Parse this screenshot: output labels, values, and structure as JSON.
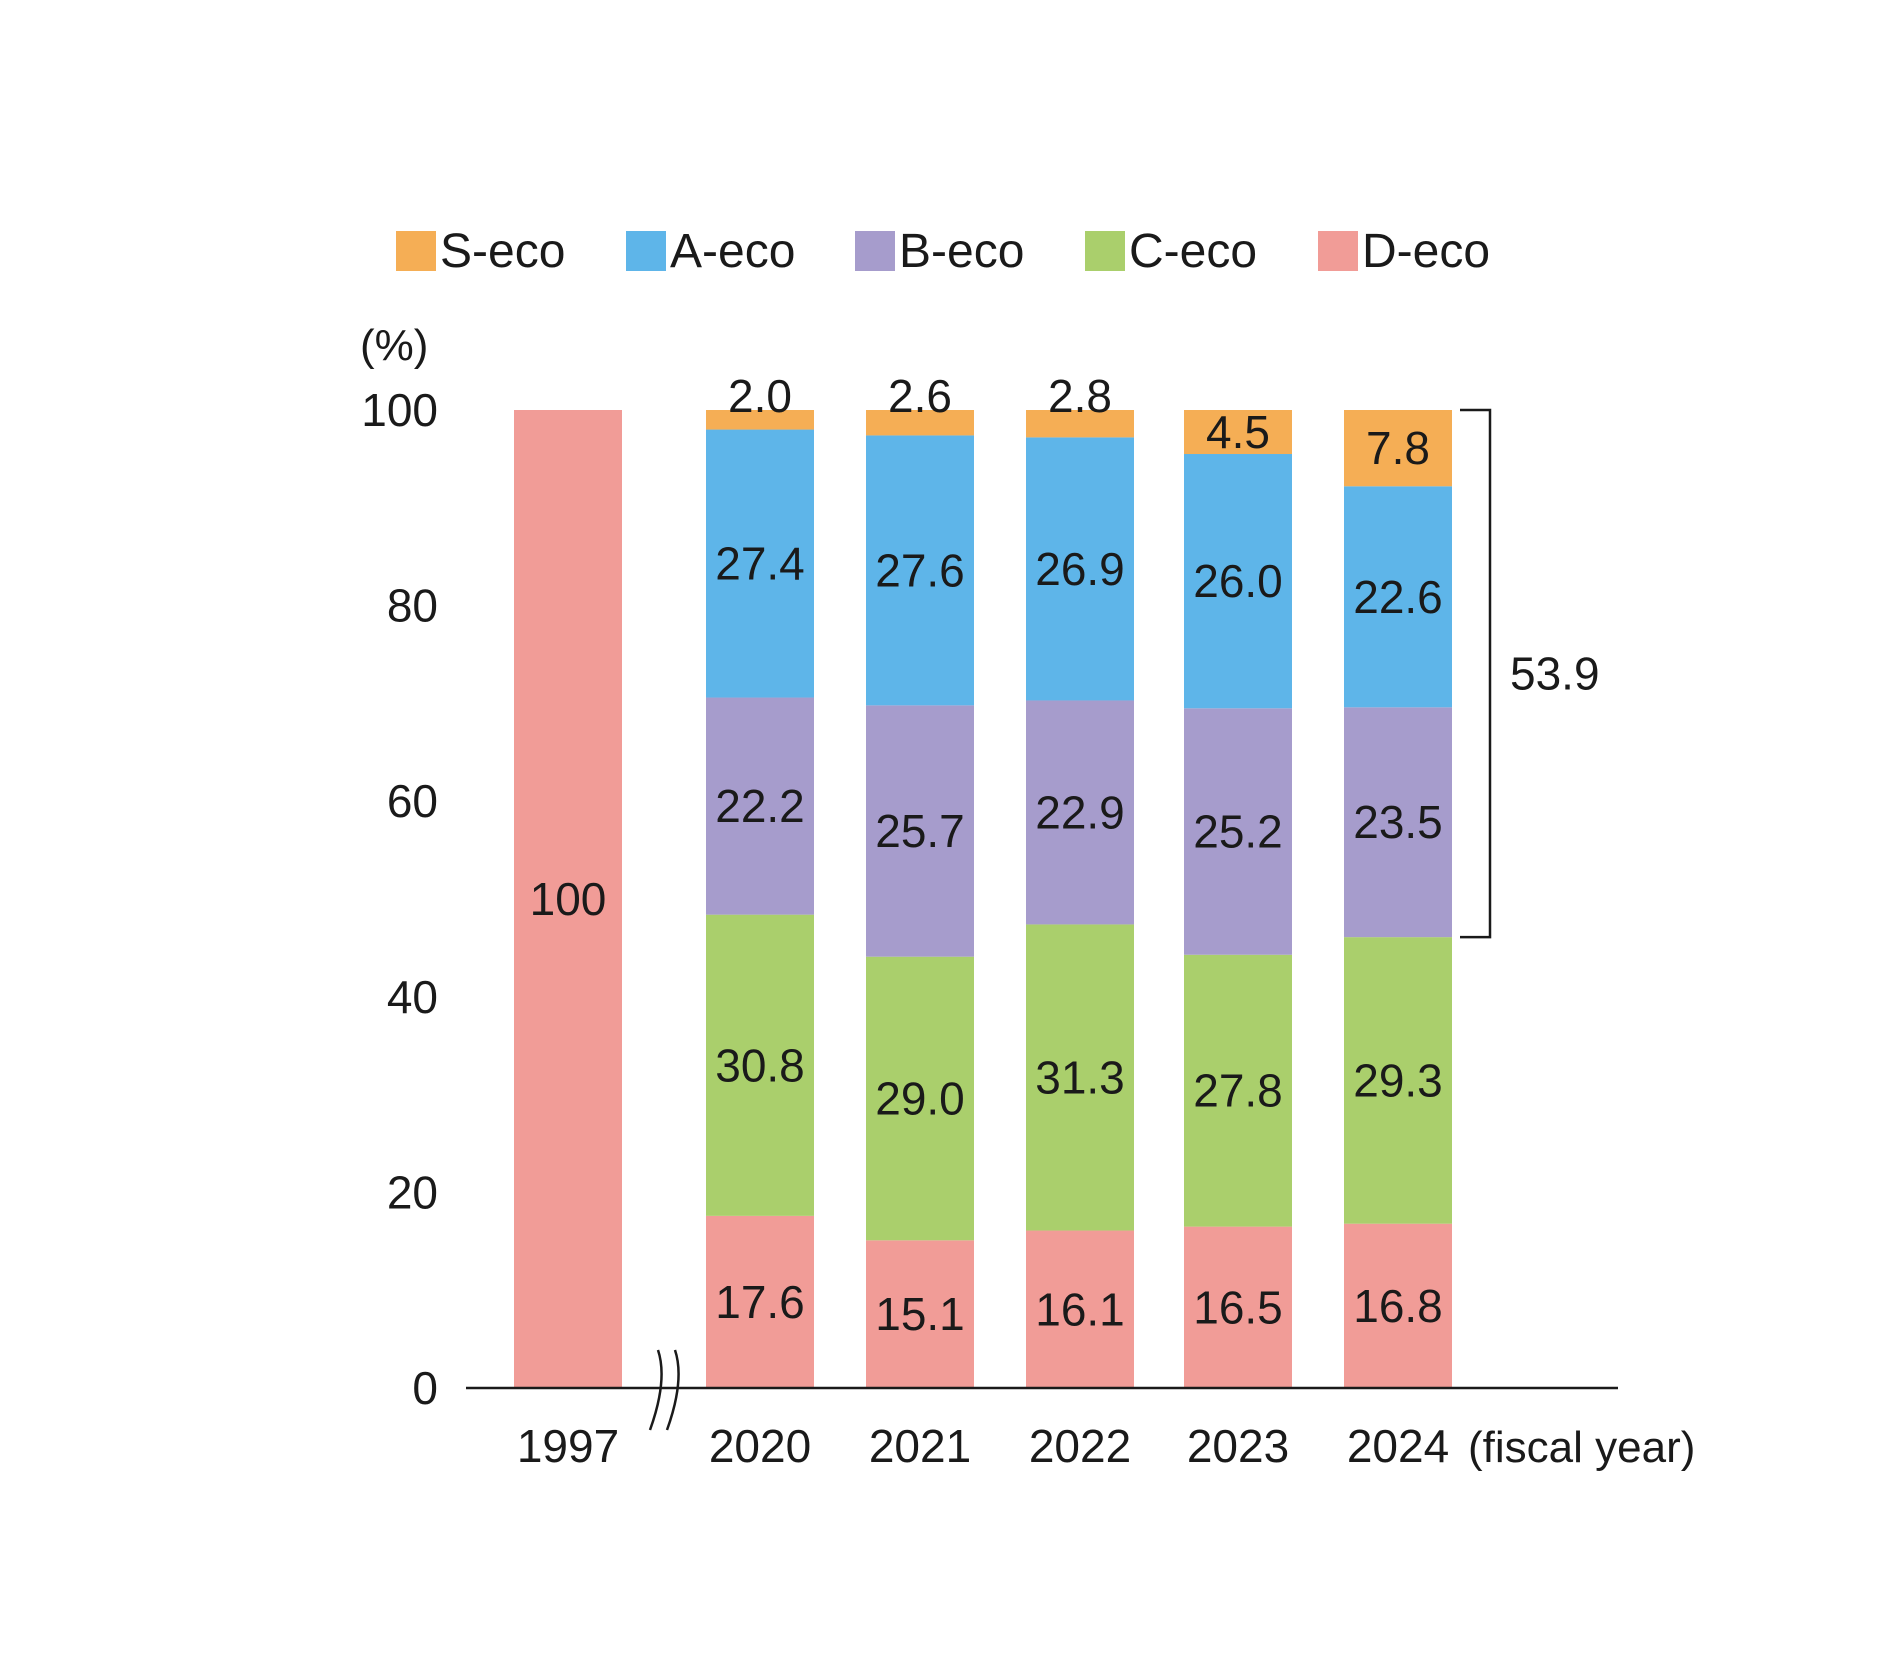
{
  "chart_data": {
    "type": "bar",
    "stacked": true,
    "categories": [
      "1997",
      "2020",
      "2021",
      "2022",
      "2023",
      "2024"
    ],
    "series": [
      {
        "name": "D-eco",
        "color": "#F19C97",
        "values": [
          100,
          17.6,
          15.1,
          16.1,
          16.5,
          16.8
        ],
        "labels": [
          "100",
          "17.6",
          "15.1",
          "16.1",
          "16.5",
          "16.8"
        ]
      },
      {
        "name": "C-eco",
        "color": "#AACF6C",
        "values": [
          null,
          30.8,
          29.0,
          31.3,
          27.8,
          29.3
        ],
        "labels": [
          "",
          "30.8",
          "29.0",
          "31.3",
          "27.8",
          "29.3"
        ]
      },
      {
        "name": "B-eco",
        "color": "#A69CCC",
        "values": [
          null,
          22.2,
          25.7,
          22.9,
          25.2,
          23.5
        ],
        "labels": [
          "",
          "22.2",
          "25.7",
          "22.9",
          "25.2",
          "23.5"
        ]
      },
      {
        "name": "A-eco",
        "color": "#5EB5E9",
        "values": [
          null,
          27.4,
          27.6,
          26.9,
          26.0,
          22.6
        ],
        "labels": [
          "",
          "27.4",
          "27.6",
          "26.9",
          "26.0",
          "22.6"
        ]
      },
      {
        "name": "S-eco",
        "color": "#F5AE55",
        "values": [
          null,
          2.0,
          2.6,
          2.8,
          4.5,
          7.8
        ],
        "labels": [
          "",
          "2.0",
          "2.6",
          "2.8",
          "4.5",
          "7.8"
        ]
      }
    ],
    "legend_order": [
      "S-eco",
      "A-eco",
      "B-eco",
      "C-eco",
      "D-eco"
    ],
    "legend_position": "top",
    "ylabel": "(%)",
    "xlabel": "(fiscal year)",
    "ylim": [
      0,
      100
    ],
    "yticks": [
      0,
      20,
      40,
      60,
      80,
      100
    ],
    "axis_break_after": "1997",
    "bracket": {
      "category": "2024",
      "from": 46.1,
      "to": 100,
      "label": "53.9"
    },
    "grid": false
  }
}
